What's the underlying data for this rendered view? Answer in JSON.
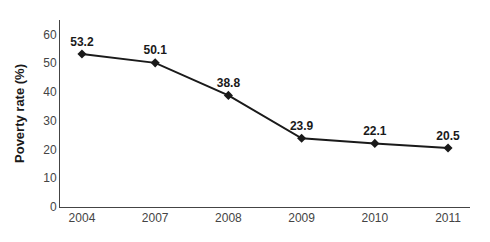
{
  "chart_data": {
    "type": "line",
    "categories": [
      "2004",
      "2007",
      "2008",
      "2009",
      "2010",
      "2011"
    ],
    "values": [
      53.2,
      50.1,
      38.8,
      23.9,
      22.1,
      20.5
    ],
    "ylabel": "Poverty rate (%)",
    "ylim": [
      0,
      65
    ],
    "yticks": [
      0,
      10,
      20,
      30,
      40,
      50,
      60
    ],
    "color": "#1a1a1a",
    "marker": "diamond",
    "line_style": "solid",
    "data_labels": true,
    "grid": false
  }
}
